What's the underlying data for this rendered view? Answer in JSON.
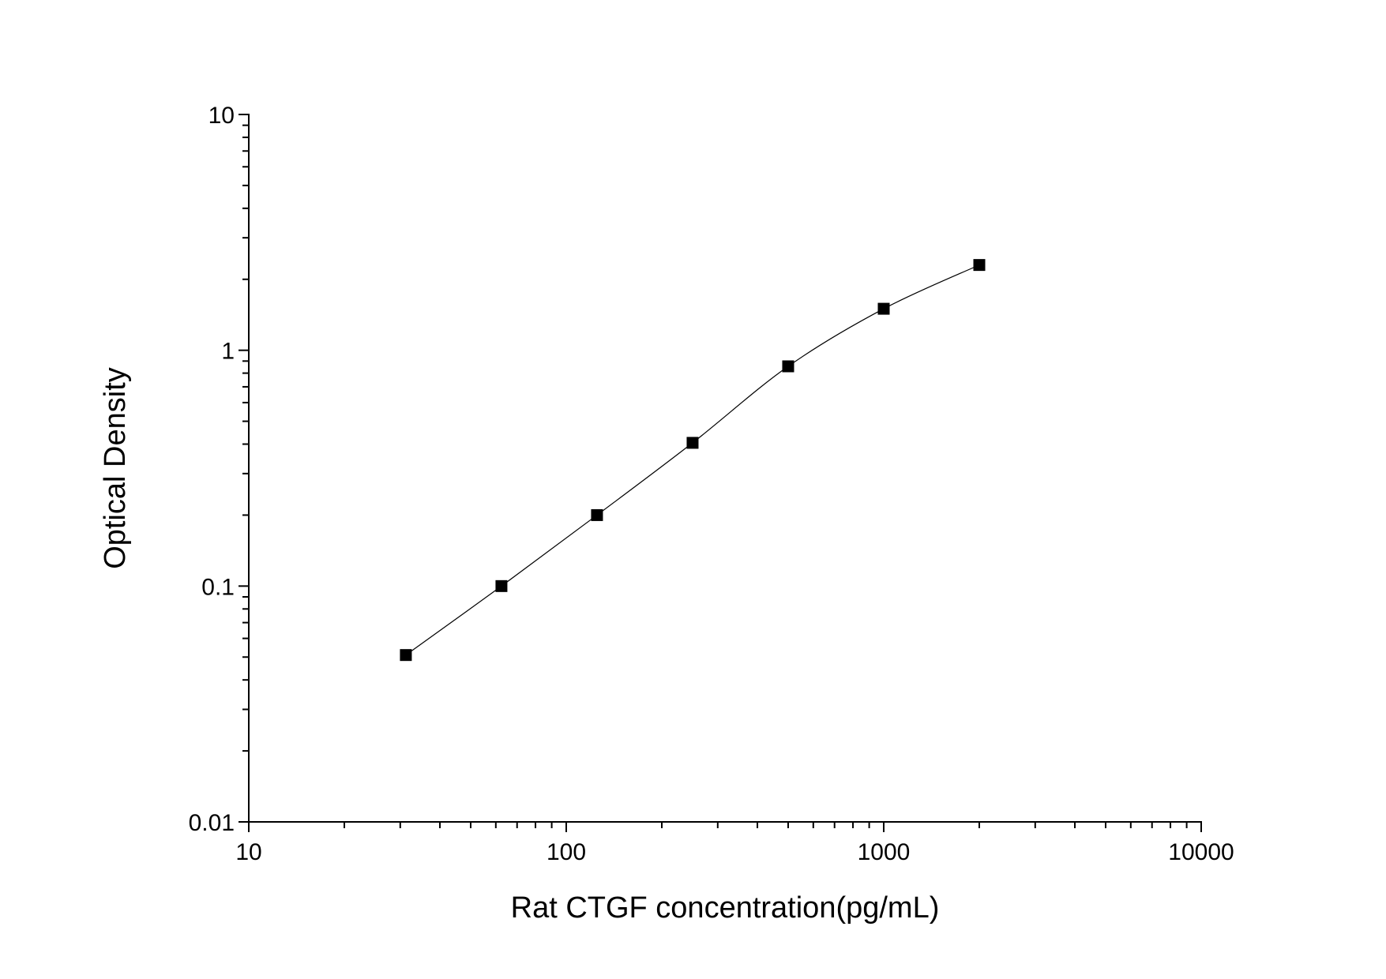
{
  "chart_data": {
    "type": "scatter",
    "title": "",
    "xlabel": "Rat CTGF concentration(pg/mL)",
    "ylabel": "Optical Density",
    "x_scale": "log",
    "y_scale": "log",
    "xlim": [
      10,
      10000
    ],
    "ylim": [
      0.01,
      10
    ],
    "x_ticks": [
      "10",
      "100",
      "1000",
      "10000"
    ],
    "y_ticks": [
      "0.01",
      "0.1",
      "1",
      "10"
    ],
    "grid": false,
    "legend": "none",
    "marker": "square",
    "marker_color": "#000000",
    "series": [
      {
        "x": [
          31.25,
          62.5,
          125,
          250,
          500,
          1000,
          2000
        ],
        "y": [
          0.051,
          0.1,
          0.2,
          0.405,
          0.855,
          1.5,
          2.3
        ]
      }
    ],
    "fit_curve": "smooth"
  }
}
